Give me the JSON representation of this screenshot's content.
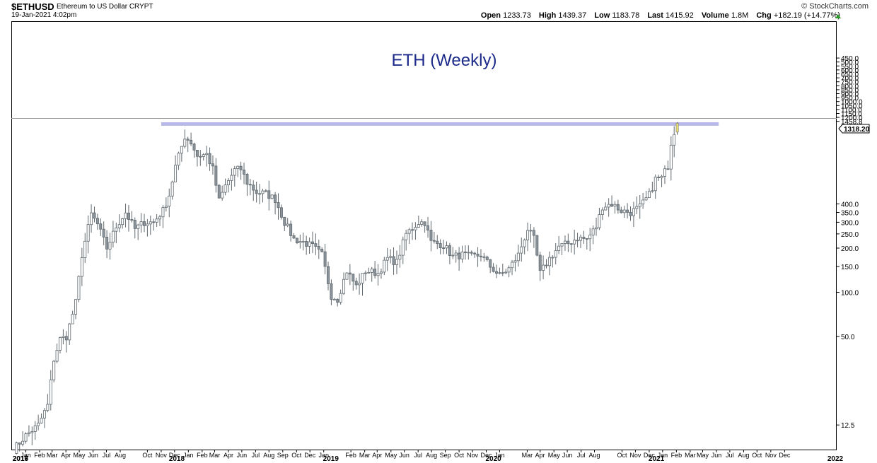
{
  "header": {
    "symbol": "$ETHUSD",
    "description": "Ethereum to US Dollar  CRYPT",
    "date": "19-Jan-2021 4:02pm",
    "brand": "© StockCharts.com",
    "open_label": "Open",
    "open": "1233.73",
    "high_label": "High",
    "high": "1439.37",
    "low_label": "Low",
    "low": "1183.78",
    "last_label": "Last",
    "last": "1415.92",
    "volume_label": "Volume",
    "volume": "1.8M",
    "chg_label": "Chg",
    "chg": "+182.19 (+14.77%)"
  },
  "colors": {
    "candle": "#8c959c",
    "candle_edge": "#5f686e",
    "current_candle": "#f2e66b",
    "resistance_line": "#b8b8e8",
    "title": "#1c2a8a",
    "grid": "#d8d8d8"
  },
  "chart_data": {
    "type": "candlestick",
    "title": "ETH (Weekly)",
    "scale": "log",
    "ylim": [
      8.5,
      1520
    ],
    "y_ticks": [
      "1458.8",
      "1318.20",
      "1200.0",
      "1150.0",
      "1100.0",
      "1050.0",
      "1000.0",
      "950.0",
      "900.0",
      "850.0",
      "800.0",
      "750.0",
      "700.0",
      "650.0",
      "600.0",
      "550.0",
      "500.0",
      "450.0",
      "400.0",
      "350.0",
      "300.0",
      "250.0",
      "200.0",
      "150.0",
      "100.0",
      "50.0",
      "12.5"
    ],
    "y_tick_values": [
      1458.8,
      1318.2,
      1200,
      1150,
      1100,
      1050,
      1000,
      950,
      900,
      850,
      800,
      750,
      700,
      650,
      600,
      550,
      500,
      450,
      400,
      350,
      300,
      250,
      200,
      150,
      100,
      50,
      12.5
    ],
    "price_marker": "1318.20",
    "resistance_level": 1400,
    "resistance_span": [
      "2017-11-15",
      "2021-04-20"
    ],
    "x_axis": {
      "domain": [
        "2016-12-15",
        "2022-01-10"
      ],
      "months": [
        {
          "label": "Jan",
          "date": "2017-01-15"
        },
        {
          "label": "Feb",
          "date": "2017-02-15"
        },
        {
          "label": "Mar",
          "date": "2017-03-15"
        },
        {
          "label": "Apr",
          "date": "2017-04-15"
        },
        {
          "label": "May",
          "date": "2017-05-15"
        },
        {
          "label": "Jun",
          "date": "2017-06-15"
        },
        {
          "label": "Jul",
          "date": "2017-07-15"
        },
        {
          "label": "Aug",
          "date": "2017-08-15"
        },
        {
          "label": "Oct",
          "date": "2017-10-15"
        },
        {
          "label": "Nov",
          "date": "2017-11-15"
        },
        {
          "label": "Dec",
          "date": "2017-12-15"
        },
        {
          "label": "Jan",
          "date": "2018-01-15"
        },
        {
          "label": "Feb",
          "date": "2018-02-15"
        },
        {
          "label": "Mar",
          "date": "2018-03-15"
        },
        {
          "label": "Apr",
          "date": "2018-04-15"
        },
        {
          "label": "Jun",
          "date": "2018-05-15"
        },
        {
          "label": "Jul",
          "date": "2018-06-15"
        },
        {
          "label": "Aug",
          "date": "2018-07-15"
        },
        {
          "label": "Sep",
          "date": "2018-08-15"
        },
        {
          "label": "Oct",
          "date": "2018-09-15"
        },
        {
          "label": "Dec",
          "date": "2018-10-15"
        },
        {
          "label": "Jan",
          "date": "2018-11-15"
        },
        {
          "label": "Feb",
          "date": "2019-01-15"
        },
        {
          "label": "Mar",
          "date": "2019-02-15"
        },
        {
          "label": "Apr",
          "date": "2019-03-15"
        },
        {
          "label": "May",
          "date": "2019-04-15"
        },
        {
          "label": "Jun",
          "date": "2019-05-15"
        },
        {
          "label": "Jul",
          "date": "2019-06-15"
        },
        {
          "label": "Aug",
          "date": "2019-07-15"
        },
        {
          "label": "Sep",
          "date": "2019-08-15"
        },
        {
          "label": "Oct",
          "date": "2019-09-15"
        },
        {
          "label": "Nov",
          "date": "2019-10-15"
        },
        {
          "label": "Dec",
          "date": "2019-11-15"
        },
        {
          "label": "Jan",
          "date": "2019-12-15"
        },
        {
          "label": "Mar",
          "date": "2020-02-15"
        },
        {
          "label": "Apr",
          "date": "2020-03-15"
        },
        {
          "label": "May",
          "date": "2020-04-15"
        },
        {
          "label": "Jun",
          "date": "2020-05-15"
        },
        {
          "label": "Jul",
          "date": "2020-06-15"
        },
        {
          "label": "Aug",
          "date": "2020-07-15"
        },
        {
          "label": "Oct",
          "date": "2020-09-15"
        },
        {
          "label": "Nov",
          "date": "2020-10-15"
        },
        {
          "label": "Dec",
          "date": "2020-11-15"
        },
        {
          "label": "Jan",
          "date": "2020-12-15"
        },
        {
          "label": "Feb",
          "date": "2021-01-15"
        },
        {
          "label": "Mar",
          "date": "2021-02-15"
        },
        {
          "label": "May",
          "date": "2021-03-15"
        },
        {
          "label": "Jun",
          "date": "2021-04-15"
        },
        {
          "label": "Jul",
          "date": "2021-05-15"
        },
        {
          "label": "Aug",
          "date": "2021-06-15"
        },
        {
          "label": "Oct",
          "date": "2021-07-15"
        },
        {
          "label": "Nov",
          "date": "2021-08-15"
        },
        {
          "label": "Dec",
          "date": "2021-09-15"
        }
      ],
      "years": [
        {
          "label": "2016",
          "date": "2016-12-15"
        },
        {
          "label": "2017",
          "date": "2017-01-01"
        },
        {
          "label": "2018",
          "date": "2017-12-20"
        },
        {
          "label": "2019",
          "date": "2018-12-01"
        },
        {
          "label": "2020",
          "date": "2019-12-01"
        },
        {
          "label": "2021",
          "date": "2020-12-01"
        },
        {
          "label": "2022",
          "date": "2022-01-10"
        }
      ]
    },
    "close_anchors": [
      [
        "2016-12-18",
        8.5
      ],
      [
        "2017-01-15",
        10.6
      ],
      [
        "2017-02-12",
        12.5
      ],
      [
        "2017-03-05",
        17
      ],
      [
        "2017-03-19",
        35
      ],
      [
        "2017-04-02",
        48
      ],
      [
        "2017-04-16",
        50
      ],
      [
        "2017-05-07",
        85
      ],
      [
        "2017-05-21",
        180
      ],
      [
        "2017-06-11",
        340
      ],
      [
        "2017-06-25",
        290
      ],
      [
        "2017-07-16",
        200
      ],
      [
        "2017-08-06",
        280
      ],
      [
        "2017-08-27",
        350
      ],
      [
        "2017-09-17",
        270
      ],
      [
        "2017-10-08",
        300
      ],
      [
        "2017-10-29",
        300
      ],
      [
        "2017-11-19",
        360
      ],
      [
        "2017-12-03",
        460
      ],
      [
        "2017-12-17",
        720
      ],
      [
        "2018-01-07",
        1150
      ],
      [
        "2018-01-21",
        1050
      ],
      [
        "2018-02-04",
        850
      ],
      [
        "2018-02-25",
        870
      ],
      [
        "2018-03-11",
        690
      ],
      [
        "2018-03-25",
        420
      ],
      [
        "2018-04-08",
        530
      ],
      [
        "2018-04-29",
        680
      ],
      [
        "2018-05-13",
        690
      ],
      [
        "2018-05-27",
        560
      ],
      [
        "2018-06-17",
        480
      ],
      [
        "2018-07-08",
        470
      ],
      [
        "2018-07-29",
        430
      ],
      [
        "2018-08-19",
        300
      ],
      [
        "2018-09-09",
        230
      ],
      [
        "2018-09-30",
        220
      ],
      [
        "2018-10-21",
        205
      ],
      [
        "2018-11-11",
        180
      ],
      [
        "2018-12-02",
        95
      ],
      [
        "2018-12-16",
        90
      ],
      [
        "2019-01-06",
        140
      ],
      [
        "2019-01-27",
        110
      ],
      [
        "2019-02-17",
        140
      ],
      [
        "2019-03-17",
        135
      ],
      [
        "2019-04-07",
        170
      ],
      [
        "2019-04-28",
        160
      ],
      [
        "2019-05-19",
        250
      ],
      [
        "2019-06-16",
        300
      ],
      [
        "2019-06-30",
        300
      ],
      [
        "2019-07-14",
        220
      ],
      [
        "2019-08-11",
        210
      ],
      [
        "2019-09-01",
        175
      ],
      [
        "2019-09-22",
        180
      ],
      [
        "2019-10-13",
        175
      ],
      [
        "2019-11-03",
        180
      ],
      [
        "2019-11-24",
        150
      ],
      [
        "2019-12-15",
        130
      ],
      [
        "2020-01-05",
        145
      ],
      [
        "2020-01-26",
        180
      ],
      [
        "2020-02-16",
        270
      ],
      [
        "2020-03-01",
        230
      ],
      [
        "2020-03-15",
        135
      ],
      [
        "2020-04-05",
        170
      ],
      [
        "2020-04-26",
        205
      ],
      [
        "2020-05-17",
        215
      ],
      [
        "2020-06-07",
        235
      ],
      [
        "2020-06-28",
        230
      ],
      [
        "2020-07-19",
        280
      ],
      [
        "2020-08-02",
        385
      ],
      [
        "2020-08-23",
        400
      ],
      [
        "2020-09-13",
        360
      ],
      [
        "2020-10-04",
        350
      ],
      [
        "2020-10-25",
        380
      ],
      [
        "2020-11-15",
        460
      ],
      [
        "2020-11-29",
        590
      ],
      [
        "2020-12-13",
        600
      ],
      [
        "2020-12-27",
        730
      ],
      [
        "2021-01-03",
        1050
      ],
      [
        "2021-01-10",
        1250
      ],
      [
        "2021-01-17",
        1230
      ]
    ],
    "last_candle": {
      "open": 1233.73,
      "high": 1439.37,
      "low": 1183.78,
      "close": 1415.92
    }
  }
}
